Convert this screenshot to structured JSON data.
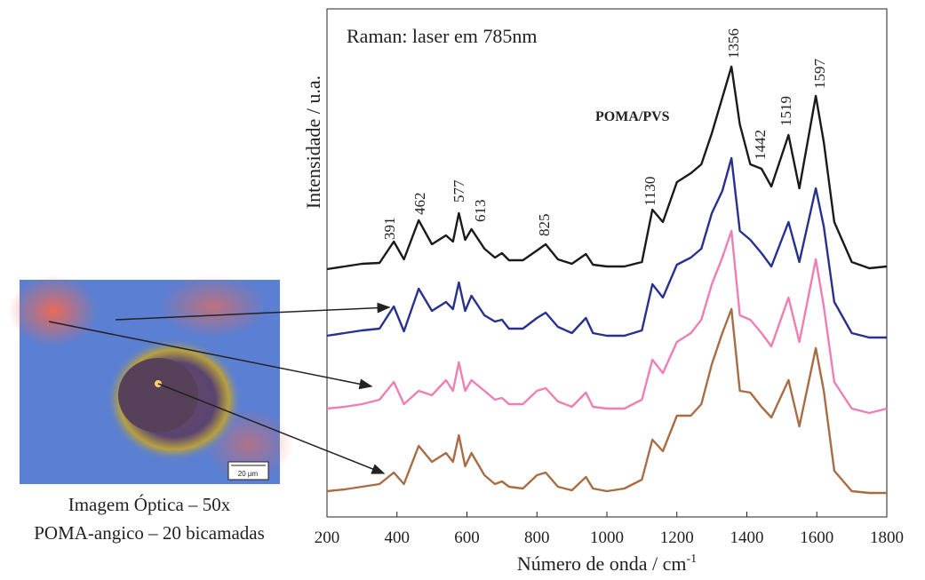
{
  "chart_data": {
    "type": "line",
    "title": "Raman: laser em 785nm",
    "annotation_sample": "POMA/PVS",
    "x_label": "Número de onda / cm",
    "x_label_sup": "-1",
    "y_label": "Intensidade / u.a.",
    "xlim": [
      200,
      1800
    ],
    "xticks": [
      200,
      400,
      600,
      800,
      1000,
      1200,
      1400,
      1600,
      1800
    ],
    "ylim": [
      0,
      572
    ],
    "peak_labels": [
      "391",
      "462",
      "577",
      "613",
      "825",
      "1130",
      "1356",
      "1442",
      "1519",
      "1597"
    ],
    "x": [
      200,
      250,
      300,
      350,
      391,
      420,
      462,
      500,
      540,
      560,
      577,
      595,
      613,
      650,
      680,
      700,
      720,
      760,
      800,
      825,
      860,
      900,
      940,
      960,
      1000,
      1050,
      1100,
      1130,
      1160,
      1200,
      1240,
      1270,
      1300,
      1330,
      1356,
      1380,
      1410,
      1442,
      1470,
      1519,
      1550,
      1597,
      1620,
      1650,
      1700,
      1750,
      1800
    ],
    "series": [
      {
        "color": "#1a1a1a",
        "values": [
          279,
          282,
          285,
          286,
          310,
          290,
          334,
          307,
          317,
          310,
          342,
          312,
          324,
          302,
          292,
          297,
          289,
          289,
          300,
          307,
          290,
          285,
          296,
          284,
          282,
          282,
          287,
          346,
          332,
          377,
          387,
          397,
          432,
          472,
          507,
          442,
          397,
          392,
          372,
          430,
          370,
          474,
          422,
          332,
          287,
          280,
          282
        ]
      },
      {
        "color": "#27318f",
        "values": [
          204,
          207,
          210,
          212,
          237,
          209,
          257,
          232,
          242,
          234,
          264,
          232,
          249,
          227,
          220,
          222,
          212,
          212,
          224,
          230,
          214,
          207,
          224,
          207,
          204,
          204,
          210,
          262,
          247,
          284,
          292,
          302,
          342,
          367,
          404,
          322,
          312,
          297,
          282,
          332,
          287,
          370,
          327,
          242,
          207,
          202,
          202
        ]
      },
      {
        "color": "#ee7fb5",
        "values": [
          122,
          124,
          127,
          132,
          152,
          127,
          142,
          137,
          154,
          142,
          174,
          142,
          154,
          142,
          132,
          134,
          127,
          127,
          142,
          145,
          130,
          124,
          140,
          124,
          122,
          122,
          132,
          177,
          162,
          197,
          207,
          222,
          262,
          292,
          322,
          227,
          222,
          207,
          192,
          247,
          197,
          290,
          237,
          152,
          122,
          117,
          122
        ]
      },
      {
        "color": "#a86d44",
        "values": [
          29,
          31,
          34,
          37,
          50,
          37,
          80,
          62,
          72,
          62,
          92,
          57,
          72,
          47,
          37,
          40,
          34,
          32,
          47,
          50,
          34,
          30,
          45,
          32,
          29,
          32,
          42,
          87,
          74,
          114,
          114,
          127,
          172,
          207,
          234,
          142,
          140,
          124,
          112,
          154,
          102,
          190,
          142,
          52,
          29,
          27,
          27
        ]
      }
    ]
  },
  "image": {
    "caption_line1": "Imagem Óptica – 50x",
    "caption_line2": "POMA-angico – 20 bicamadas",
    "scale_bar": "20 µm"
  }
}
